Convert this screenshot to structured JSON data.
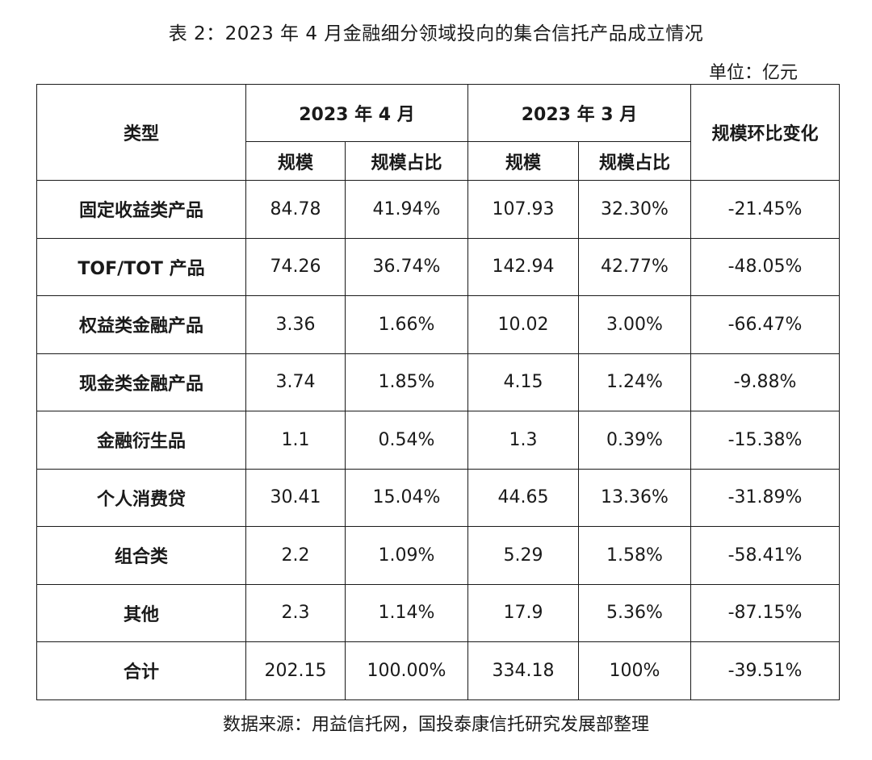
{
  "title": "表 2：2023 年 4 月金融细分领域投向的集合信托产品成立情况",
  "unit": "单位：亿元",
  "header": {
    "type": "类型",
    "april": "2023 年 4 月",
    "march": "2023 年 3 月",
    "change": "规模环比变化",
    "scale": "规模",
    "share": "规模占比"
  },
  "rows": [
    {
      "type": "固定收益类产品",
      "apr_scale": "84.78",
      "apr_share": "41.94%",
      "mar_scale": "107.93",
      "mar_share": "32.30%",
      "change": "-21.45%"
    },
    {
      "type": "TOF/TOT 产品",
      "apr_scale": "74.26",
      "apr_share": "36.74%",
      "mar_scale": "142.94",
      "mar_share": "42.77%",
      "change": "-48.05%"
    },
    {
      "type": "权益类金融产品",
      "apr_scale": "3.36",
      "apr_share": "1.66%",
      "mar_scale": "10.02",
      "mar_share": "3.00%",
      "change": "-66.47%"
    },
    {
      "type": "现金类金融产品",
      "apr_scale": "3.74",
      "apr_share": "1.85%",
      "mar_scale": "4.15",
      "mar_share": "1.24%",
      "change": "-9.88%"
    },
    {
      "type": "金融衍生品",
      "apr_scale": "1.1",
      "apr_share": "0.54%",
      "mar_scale": "1.3",
      "mar_share": "0.39%",
      "change": "-15.38%"
    },
    {
      "type": "个人消费贷",
      "apr_scale": "30.41",
      "apr_share": "15.04%",
      "mar_scale": "44.65",
      "mar_share": "13.36%",
      "change": "-31.89%"
    },
    {
      "type": "组合类",
      "apr_scale": "2.2",
      "apr_share": "1.09%",
      "mar_scale": "5.29",
      "mar_share": "1.58%",
      "change": "-58.41%"
    },
    {
      "type": "其他",
      "apr_scale": "2.3",
      "apr_share": "1.14%",
      "mar_scale": "17.9",
      "mar_share": "5.36%",
      "change": "-87.15%"
    },
    {
      "type": "合计",
      "apr_scale": "202.15",
      "apr_share": "100.00%",
      "mar_scale": "334.18",
      "mar_share": "100%",
      "change": "-39.51%"
    }
  ],
  "source": "数据来源：用益信托网，国投泰康信托研究发展部整理"
}
